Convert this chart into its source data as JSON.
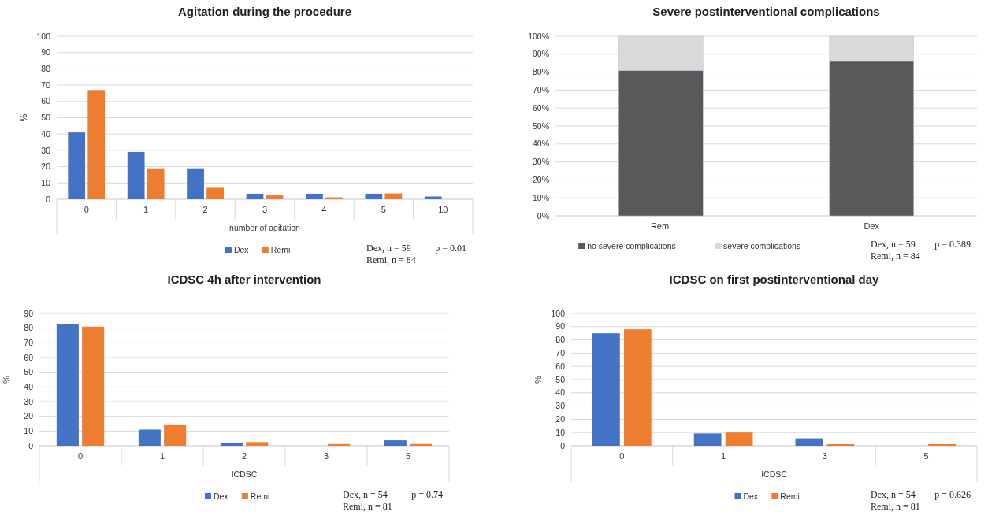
{
  "chart_data": [
    {
      "type": "bar",
      "title": "Agitation during the procedure",
      "xlabel": "number of agitation",
      "ylabel": "%",
      "categories": [
        "0",
        "1",
        "2",
        "3",
        "4",
        "5",
        "10"
      ],
      "series": [
        {
          "name": "Dex",
          "color": "#4472c4",
          "values": [
            41,
            29,
            19,
            3.4,
            3.4,
            3.4,
            1.7
          ]
        },
        {
          "name": "Remi",
          "color": "#ed7d31",
          "values": [
            67,
            19,
            7,
            2.4,
            1.2,
            3.6,
            null
          ]
        }
      ],
      "ylim": [
        0,
        100
      ],
      "yticks": [
        0,
        10,
        20,
        30,
        40,
        50,
        60,
        70,
        80,
        90,
        100
      ],
      "grid": "y",
      "legend": "bottom",
      "annotations": [
        "Dex, n = 59",
        "Remi, n = 84",
        "p = 0.01"
      ]
    },
    {
      "type": "bar",
      "title": "Severe postinterventional complications",
      "categories": [
        "Remi",
        "Dex"
      ],
      "stacked": true,
      "series": [
        {
          "name": "no severe complications",
          "color": "#595959",
          "values": [
            81,
            86
          ]
        },
        {
          "name": "severe complications",
          "color": "#d9d9d9",
          "values": [
            19,
            14
          ]
        }
      ],
      "ylim": [
        0,
        100
      ],
      "yticks": [
        {
          "value": 0,
          "label": "0%"
        },
        {
          "value": 10,
          "label": "10%"
        },
        {
          "value": 20,
          "label": "20%"
        },
        {
          "value": 30,
          "label": "30%"
        },
        {
          "value": 40,
          "label": "40%"
        },
        {
          "value": 50,
          "label": "50%"
        },
        {
          "value": 60,
          "label": "60%"
        },
        {
          "value": 70,
          "label": "70%"
        },
        {
          "value": 80,
          "label": "80%"
        },
        {
          "value": 90,
          "label": "90%"
        },
        {
          "value": 100,
          "label": "100%"
        }
      ],
      "grid": "y",
      "legend": "bottom",
      "annotations": [
        "Dex, n = 59",
        "Remi, n = 84",
        "p = 0.389"
      ]
    },
    {
      "type": "bar",
      "title": "ICDSC 4h after intervention",
      "xlabel": "ICDSC",
      "ylabel": "%",
      "categories": [
        "0",
        "1",
        "2",
        "3",
        "5"
      ],
      "series": [
        {
          "name": "Dex",
          "color": "#4472c4",
          "values": [
            83,
            11,
            1.9,
            null,
            3.7
          ]
        },
        {
          "name": "Remi",
          "color": "#ed7d31",
          "values": [
            81,
            14,
            2.5,
            1.2,
            1.2
          ]
        }
      ],
      "ylim": [
        0,
        90
      ],
      "yticks": [
        0,
        10,
        20,
        30,
        40,
        50,
        60,
        70,
        80,
        90
      ],
      "grid": "y",
      "legend": "bottom",
      "annotations": [
        "Dex, n = 54",
        "Remi, n = 81",
        "p = 0.74"
      ]
    },
    {
      "type": "bar",
      "title": "ICDSC on first postinterventional day",
      "xlabel": "ICDSC",
      "ylabel": "%",
      "categories": [
        "0",
        "1",
        "3",
        "5"
      ],
      "series": [
        {
          "name": "Dex",
          "color": "#4472c4",
          "values": [
            85,
            9.3,
            5.6,
            null
          ]
        },
        {
          "name": "Remi",
          "color": "#ed7d31",
          "values": [
            88,
            10,
            1.2,
            1.2
          ]
        }
      ],
      "ylim": [
        0,
        100
      ],
      "yticks": [
        0,
        10,
        20,
        30,
        40,
        50,
        60,
        70,
        80,
        90,
        100
      ],
      "grid": "y",
      "legend": "bottom",
      "annotations": [
        "Dex, n = 54",
        "Remi, n = 81",
        "p = 0.626"
      ]
    }
  ]
}
